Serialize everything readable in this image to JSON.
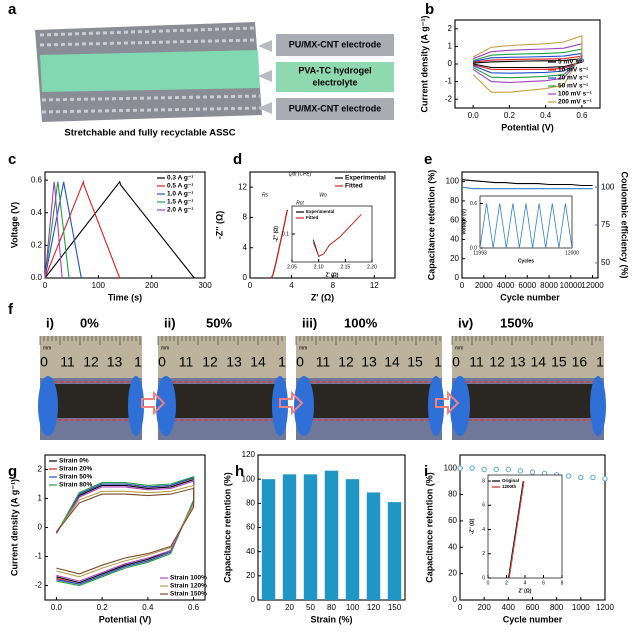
{
  "schematic": {
    "panel": "a",
    "top": "PU/MX-CNT electrode",
    "middle": [
      "PVA-TC hydrogel",
      "electrolyte"
    ],
    "bottom": "PU/MX-CNT electrode",
    "caption": "Stretchable and fully recyclable ASSC"
  },
  "photos": {
    "panel": "f",
    "unit": "mm",
    "items": [
      {
        "label": "i)",
        "strain": "0%",
        "ruler": [
          "0",
          "11",
          "12",
          "13",
          "1"
        ]
      },
      {
        "label": "ii)",
        "strain": "50%",
        "ruler": [
          "0",
          "11",
          "12",
          "13",
          "14",
          "1"
        ]
      },
      {
        "label": "iii)",
        "strain": "100%",
        "ruler": [
          "0",
          "11",
          "12",
          "13",
          "14",
          "15",
          "1"
        ]
      },
      {
        "label": "iv)",
        "strain": "150%",
        "ruler": [
          "0",
          "11",
          "12",
          "13",
          "14",
          "15",
          "16",
          "1"
        ]
      }
    ]
  },
  "chart_data": [
    {
      "type": "line",
      "panel": "b",
      "xlabel": "Potential (V)",
      "ylabel": "Current density (A g⁻¹)",
      "xlim": [
        -0.1,
        0.7
      ],
      "ylim": [
        -2.5,
        2.5
      ],
      "xticks": [
        {
          "value": 0,
          "label": "0.0"
        },
        {
          "value": 0.2,
          "label": "0.2"
        },
        {
          "value": 0.4,
          "label": "0.4"
        },
        {
          "value": 0.6,
          "label": "0.6"
        }
      ],
      "yticks": [
        -2,
        -1,
        0,
        1,
        2
      ],
      "legend": "lower right",
      "x": [
        0,
        0.1,
        0.2,
        0.3,
        0.4,
        0.5,
        0.6,
        0.6,
        0.5,
        0.4,
        0.3,
        0.2,
        0.1,
        0
      ],
      "series": [
        {
          "name": "5 mV s⁻¹",
          "color": "#000000",
          "values": [
            0.05,
            0.12,
            0.15,
            0.17,
            0.18,
            0.2,
            0.3,
            0.1,
            -0.15,
            -0.2,
            -0.2,
            -0.2,
            -0.2,
            0.0
          ]
        },
        {
          "name": "10 mV s⁻¹",
          "color": "#e02020",
          "values": [
            0.1,
            0.22,
            0.25,
            0.27,
            0.28,
            0.3,
            0.45,
            0.15,
            -0.25,
            -0.3,
            -0.3,
            -0.32,
            -0.3,
            -0.05
          ]
        },
        {
          "name": "20 mV s⁻¹",
          "color": "#2050d0",
          "values": [
            0.15,
            0.35,
            0.38,
            0.4,
            0.42,
            0.45,
            0.6,
            0.2,
            -0.4,
            -0.48,
            -0.5,
            -0.52,
            -0.5,
            -0.1
          ]
        },
        {
          "name": "50 mV s⁻¹",
          "color": "#20a040",
          "values": [
            0.2,
            0.5,
            0.55,
            0.58,
            0.6,
            0.65,
            0.85,
            0.3,
            -0.6,
            -0.7,
            -0.75,
            -0.78,
            -0.75,
            -0.2
          ]
        },
        {
          "name": "100 mV s⁻¹",
          "color": "#a040c0",
          "values": [
            0.3,
            0.7,
            0.78,
            0.82,
            0.85,
            0.9,
            1.15,
            0.4,
            -0.8,
            -0.95,
            -1.0,
            -1.05,
            -1.0,
            -0.3
          ]
        },
        {
          "name": "200 mV s⁻¹",
          "color": "#c8a040",
          "values": [
            0.4,
            0.95,
            1.05,
            1.1,
            1.15,
            1.25,
            1.6,
            0.6,
            -1.2,
            -1.4,
            -1.5,
            -1.6,
            -1.6,
            -0.6
          ]
        }
      ]
    },
    {
      "type": "line",
      "panel": "c",
      "xlabel": "Time (s)",
      "ylabel": "Voltage (V)",
      "xlim": [
        0,
        300
      ],
      "ylim": [
        0,
        0.65
      ],
      "xticks": [
        0,
        100,
        200,
        300
      ],
      "yticks": [
        {
          "value": 0,
          "label": "0.0"
        },
        {
          "value": 0.2,
          "label": "0.2"
        },
        {
          "value": 0.4,
          "label": "0.4"
        },
        {
          "value": 0.6,
          "label": "0.6"
        }
      ],
      "legend": "upper right",
      "series": [
        {
          "name": "0.3 A g⁻¹",
          "color": "#000000",
          "x": [
            0,
            140,
            142,
            280
          ],
          "values": [
            0,
            0.59,
            0.57,
            0
          ]
        },
        {
          "name": "0.5 A g⁻¹",
          "color": "#e02020",
          "x": [
            0,
            72,
            73,
            140
          ],
          "values": [
            0,
            0.59,
            0.57,
            0
          ]
        },
        {
          "name": "1.0 A g⁻¹",
          "color": "#2050d0",
          "x": [
            0,
            35,
            36,
            68
          ],
          "values": [
            0,
            0.59,
            0.57,
            0
          ]
        },
        {
          "name": "1.5 A g⁻¹",
          "color": "#20a040",
          "x": [
            0,
            24,
            25,
            45
          ],
          "values": [
            0,
            0.59,
            0.57,
            0
          ]
        },
        {
          "name": "2.0 A g⁻¹",
          "color": "#a040c0",
          "x": [
            0,
            17,
            18,
            32
          ],
          "values": [
            0,
            0.59,
            0.57,
            0
          ]
        }
      ]
    },
    {
      "type": "line",
      "panel": "d",
      "xlabel": "Z' (Ω)",
      "ylabel": "-Z'' (Ω)",
      "xlim": [
        0,
        14
      ],
      "ylim": [
        0,
        14
      ],
      "xticks": [
        0,
        4,
        8,
        12
      ],
      "yticks": [
        0,
        4,
        8,
        12
      ],
      "legend": "upper right",
      "annotations": [
        "Qdl (CPE)",
        "Rs",
        "Wo",
        "Rct"
      ],
      "series": [
        {
          "name": "Experimental",
          "color": "#000000",
          "x": [
            2.05,
            2.2,
            2.5,
            2.9,
            3.3,
            3.6
          ],
          "values": [
            0,
            0.4,
            2.0,
            4.5,
            7.0,
            9.0
          ]
        },
        {
          "name": "Fitted",
          "color": "#e02020",
          "x": [
            2.05,
            2.2,
            2.5,
            2.9,
            3.3,
            3.6
          ],
          "values": [
            0,
            0.35,
            1.9,
            4.4,
            7.0,
            9.0
          ]
        }
      ]
    },
    {
      "type": "line",
      "xlabel": "Z' (Ω)",
      "ylabel": "-Z'' (Ω)",
      "xlim": [
        2.05,
        2.2
      ],
      "ylim": [
        0,
        0.2
      ],
      "xticks": [
        {
          "value": 2.05,
          "label": "2.05"
        },
        {
          "value": 2.1,
          "label": "2.10"
        },
        {
          "value": 2.15,
          "label": "2.15"
        },
        {
          "value": 2.2,
          "label": "2.20"
        }
      ],
      "yticks": [
        0.1
      ],
      "legend": "upper left",
      "series": [
        {
          "name": "Experimental",
          "color": "#000000",
          "x": [
            2.09,
            2.1,
            2.11,
            2.12,
            2.14,
            2.16,
            2.18
          ],
          "values": [
            0.08,
            0.02,
            0.03,
            0.06,
            0.09,
            0.13,
            0.17
          ]
        },
        {
          "name": "Fitted",
          "color": "#e02020",
          "x": [
            2.09,
            2.1,
            2.11,
            2.12,
            2.14,
            2.16,
            2.18
          ],
          "values": [
            0.07,
            0.02,
            0.03,
            0.06,
            0.09,
            0.13,
            0.17
          ]
        }
      ]
    },
    {
      "type": "line",
      "panel": "e",
      "xlabel": "Cycle number",
      "ylabel": "Capacitance retention (%)",
      "y2label": "Coulombic efficiency (%)",
      "xlim": [
        0,
        12500
      ],
      "ylim": [
        0,
        110
      ],
      "y2lim": [
        40,
        110
      ],
      "xticks": [
        0,
        2000,
        4000,
        6000,
        8000,
        10000,
        12000
      ],
      "yticks": [
        0,
        20,
        40,
        60,
        80,
        100
      ],
      "y2ticks": [
        50,
        75,
        100
      ],
      "x": [
        0,
        1000,
        2000,
        3000,
        4000,
        5000,
        6000,
        7000,
        8000,
        9000,
        10000,
        11000,
        12000
      ],
      "series": [
        {
          "color": "#000000",
          "values": [
            102,
            101,
            100,
            99,
            99,
            98,
            98,
            98,
            97,
            97,
            97,
            96,
            96
          ]
        },
        {
          "color": "#2f80c8",
          "axis": "y2",
          "values": [
            100,
            99,
            99,
            99,
            99,
            99,
            99,
            99,
            99,
            99,
            99,
            99,
            99
          ]
        }
      ]
    },
    {
      "type": "line",
      "xlabel": "Cycles",
      "ylabel": "Voltage (V)",
      "xlim": [
        11993,
        12000
      ],
      "ylim": [
        0,
        0.7
      ],
      "xticks": [
        11993,
        12000
      ],
      "yticks": [
        {
          "value": 0,
          "label": "0.0"
        },
        {
          "value": 0.6,
          "label": "0.6"
        }
      ],
      "x": [
        11993,
        11993.5,
        11994,
        11994.5,
        11995,
        11995.5,
        11996,
        11996.5,
        11997,
        11997.5,
        11998,
        11998.5,
        11999,
        11999.5,
        12000
      ],
      "series": [
        {
          "color": "#2f80c8",
          "values": [
            0,
            0.6,
            0,
            0.6,
            0,
            0.6,
            0,
            0.6,
            0,
            0.6,
            0,
            0.6,
            0,
            0.6,
            0
          ]
        }
      ]
    },
    {
      "type": "line",
      "panel": "g",
      "xlabel": "Potential (V)",
      "ylabel": "Current density (A g⁻¹)",
      "xlim": [
        -0.05,
        0.65
      ],
      "ylim": [
        -2.5,
        2.5
      ],
      "xticks": [
        {
          "value": 0,
          "label": "0.0"
        },
        {
          "value": 0.2,
          "label": "0.2"
        },
        {
          "value": 0.4,
          "label": "0.4"
        },
        {
          "value": 0.6,
          "label": "0.6"
        }
      ],
      "yticks": [
        -2,
        -1,
        0,
        1,
        2
      ],
      "legend": [
        "upper left",
        "lower right"
      ],
      "x": [
        0,
        0.1,
        0.2,
        0.3,
        0.4,
        0.5,
        0.6,
        0.6,
        0.5,
        0.4,
        0.3,
        0.2,
        0.1,
        0
      ],
      "series": [
        {
          "name": "Strain 0%",
          "color": "#000000",
          "values": [
            -0.2,
            1.1,
            1.45,
            1.45,
            1.35,
            1.4,
            1.65,
            0.9,
            -0.8,
            -1.1,
            -1.3,
            -1.6,
            -1.9,
            -1.7
          ]
        },
        {
          "name": "Strain 20%",
          "color": "#e02020",
          "values": [
            -0.2,
            1.15,
            1.5,
            1.5,
            1.4,
            1.45,
            1.7,
            0.9,
            -0.85,
            -1.15,
            -1.35,
            -1.65,
            -1.95,
            -1.75
          ]
        },
        {
          "name": "Strain 50%",
          "color": "#2050d0",
          "values": [
            -0.2,
            1.15,
            1.5,
            1.5,
            1.4,
            1.45,
            1.72,
            0.9,
            -0.85,
            -1.15,
            -1.35,
            -1.65,
            -1.95,
            -1.8
          ]
        },
        {
          "name": "Strain 80%",
          "color": "#20a040",
          "values": [
            -0.2,
            1.2,
            1.55,
            1.55,
            1.45,
            1.5,
            1.75,
            0.95,
            -0.9,
            -1.2,
            -1.4,
            -1.7,
            -2.0,
            -1.85
          ]
        },
        {
          "name": "Strain 100%",
          "color": "#b040c8",
          "values": [
            -0.2,
            1.05,
            1.4,
            1.4,
            1.3,
            1.35,
            1.6,
            0.85,
            -0.8,
            -1.05,
            -1.25,
            -1.55,
            -1.85,
            -1.65
          ]
        },
        {
          "name": "Strain 120%",
          "color": "#b8a04a",
          "values": [
            -0.15,
            0.95,
            1.25,
            1.25,
            1.2,
            1.25,
            1.45,
            0.8,
            -0.7,
            -0.95,
            -1.15,
            -1.4,
            -1.7,
            -1.5
          ]
        },
        {
          "name": "Strain 150%",
          "color": "#7a4a2a",
          "values": [
            -0.15,
            0.85,
            1.15,
            1.15,
            1.1,
            1.15,
            1.35,
            0.7,
            -0.65,
            -0.9,
            -1.05,
            -1.3,
            -1.6,
            -1.4
          ]
        }
      ]
    },
    {
      "type": "bar",
      "panel": "h",
      "xlabel": "Strain (%)",
      "ylabel": "Capacitance retention (%)",
      "ylim": [
        0,
        120
      ],
      "yticks": [
        0,
        20,
        40,
        60,
        80,
        100,
        120
      ],
      "color": "#1f96c4",
      "categories": [
        "0",
        "20",
        "50",
        "80",
        "100",
        "120",
        "150"
      ],
      "values": [
        100,
        104,
        104,
        107,
        100,
        89,
        81
      ]
    },
    {
      "type": "line",
      "panel": "i",
      "xlabel": "Cycle number",
      "ylabel": "Capacitance retention (%)",
      "xlim": [
        0,
        1200
      ],
      "ylim": [
        0,
        110
      ],
      "xticks": [
        0,
        200,
        400,
        600,
        800,
        1000,
        1200
      ],
      "yticks": [
        0,
        20,
        40,
        60,
        80,
        100
      ],
      "marker": "circle",
      "x": [
        0,
        100,
        200,
        300,
        400,
        500,
        600,
        700,
        800,
        900,
        1000,
        1100,
        1200
      ],
      "series": [
        {
          "color": "#5aa8d8",
          "values": [
            100,
            100,
            99,
            99,
            99,
            98,
            97,
            96,
            95,
            94,
            93,
            93,
            92
          ]
        }
      ]
    },
    {
      "type": "line",
      "xlabel": "Z' (Ω)",
      "ylabel": "-Z'' (Ω)",
      "xlim": [
        0,
        8
      ],
      "ylim": [
        0,
        8.5
      ],
      "xticks": [
        0,
        2,
        4,
        6,
        8
      ],
      "yticks": [
        0,
        2,
        4,
        6,
        8
      ],
      "legend": "upper left",
      "series": [
        {
          "name": "Original",
          "color": "#000000",
          "x": [
            2.2,
            2.6,
            3.0,
            3.4,
            3.8
          ],
          "values": [
            0,
            2,
            4,
            6,
            8
          ]
        },
        {
          "name": "1200th",
          "color": "#e02020",
          "x": [
            2.3,
            2.7,
            3.1,
            3.5,
            3.9
          ],
          "values": [
            0,
            2,
            4,
            6,
            8
          ]
        }
      ]
    }
  ]
}
